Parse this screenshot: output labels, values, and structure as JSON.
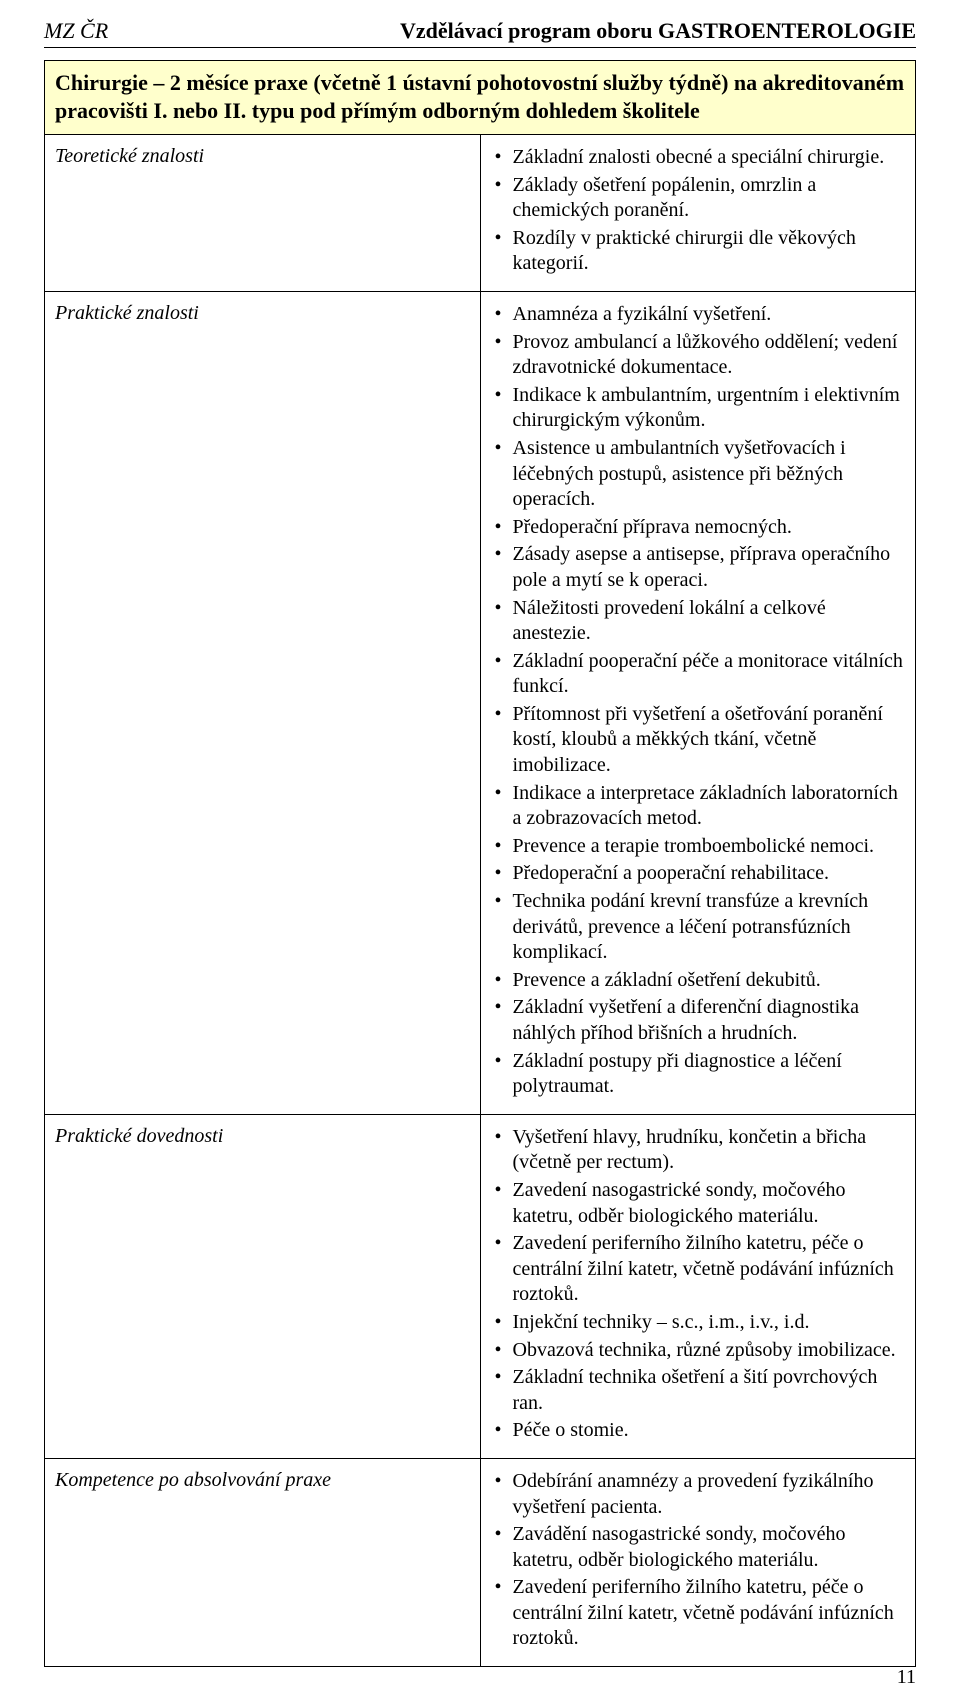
{
  "header": {
    "left": "MZ ČR",
    "right": "Vzdělávací program oboru GASTROENTEROLOGIE"
  },
  "banner": "Chirurgie – 2 měsíce praxe (včetně 1 ústavní pohotovostní služby týdně) na akreditovaném pracovišti I. nebo II. typu pod přímým odborným dohledem školitele",
  "rows": [
    {
      "label": "Teoretické znalosti",
      "items": [
        "Základní znalosti obecné a speciální chirurgie.",
        "Základy ošetření popálenin, omrzlin a chemických poranění.",
        "Rozdíly v praktické chirurgii dle věkových kategorií."
      ]
    },
    {
      "label": "Praktické znalosti",
      "items": [
        "Anamnéza a fyzikální vyšetření.",
        "Provoz ambulancí a lůžkového oddělení; vedení zdravotnické dokumentace.",
        "Indikace k ambulantním, urgentním i elektivním chirurgickým výkonům.",
        "Asistence u ambulantních vyšetřovacích i léčebných postupů, asistence při běžných operacích.",
        "Předoperační příprava nemocných.",
        "Zásady asepse a antisepse, příprava operačního pole a mytí se k operaci.",
        "Náležitosti provedení lokální a celkové anestezie.",
        "Základní pooperační péče a monitorace vitálních funkcí.",
        "Přítomnost při vyšetření a ošetřování poranění kostí, kloubů a měkkých tkání, včetně imobilizace.",
        "Indikace a interpretace základních laboratorních a zobrazovacích metod.",
        "Prevence a terapie tromboembolické nemoci.",
        "Předoperační a pooperační rehabilitace.",
        "Technika podání krevní transfúze a krevních derivátů, prevence a léčení potransfúzních komplikací.",
        "Prevence a základní ošetření dekubitů.",
        "Základní vyšetření a diferenční diagnostika náhlých příhod břišních a hrudních.",
        "Základní postupy při diagnostice a léčení polytraumat."
      ]
    },
    {
      "label": "Praktické dovednosti",
      "items": [
        "Vyšetření hlavy, hrudníku, končetin a břicha (včetně per rectum).",
        "Zavedení nasogastrické sondy, močového katetru, odběr biologického materiálu.",
        "Zavedení periferního žilního katetru, péče o centrální žilní katetr, včetně podávání infúzních roztoků.",
        "Injekční techniky – s.c., i.m., i.v., i.d.",
        "Obvazová technika, různé způsoby imobilizace.",
        "Základní technika ošetření a šití povrchových ran.",
        "Péče o stomie."
      ]
    },
    {
      "label": "Kompetence po absolvování praxe",
      "items": [
        "Odebírání anamnézy a provedení fyzikálního vyšetření pacienta.",
        "Zavádění nasogastrické sondy, močového katetru, odběr biologického materiálu.",
        "Zavedení periferního žilního katetru, péče o centrální žilní katetr, včetně podávání infúzních roztoků."
      ]
    }
  ],
  "page_number": "11",
  "colors": {
    "banner_bg": "#ffffcc",
    "border": "#000000",
    "text": "#000000",
    "page_bg": "#ffffff"
  }
}
